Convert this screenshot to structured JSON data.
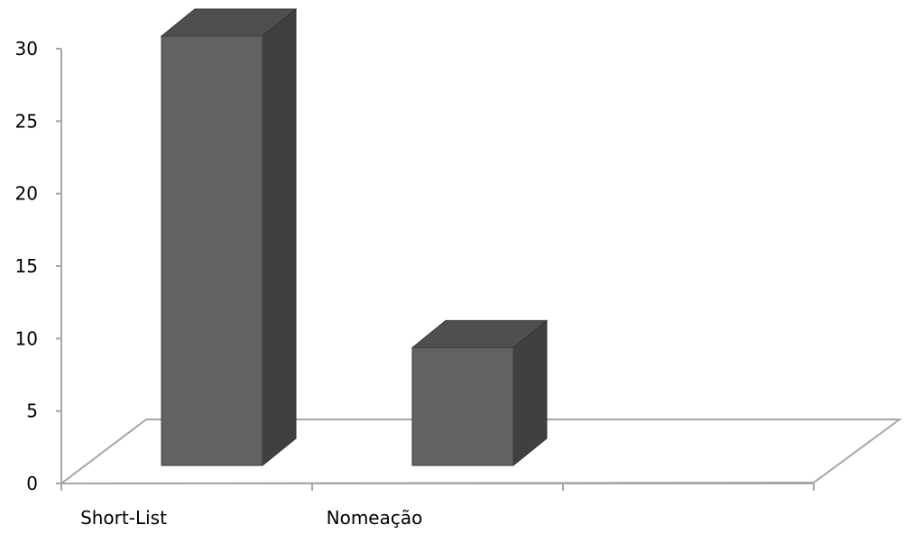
{
  "chart_data": {
    "type": "bar",
    "three_d": true,
    "categories": [
      "Short-List",
      "Nomeação",
      ""
    ],
    "values": [
      30,
      8.5,
      null
    ],
    "title": "",
    "xlabel": "",
    "ylabel": "",
    "ylim": [
      0,
      30
    ],
    "yticks": [
      "0",
      "5",
      "10",
      "15",
      "20",
      "25",
      "30"
    ],
    "grid": false,
    "legend": "none",
    "colors": {
      "bar_front": "#626262",
      "bar_side": "#404040",
      "bar_top": "#4f4f4f",
      "axis": "#a6a6a6"
    }
  }
}
